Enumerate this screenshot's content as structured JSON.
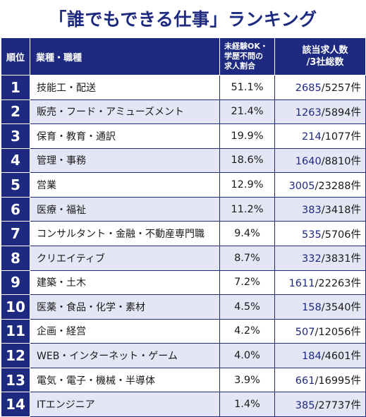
{
  "title": "「誰でもできる仕事」ランキング",
  "header": {
    "rank": "順位",
    "job": "業種・職種",
    "rate": "未経験OK・\n学歴不問の\n求人割合",
    "count": "該当求人数\n/3社総数"
  },
  "rows": [
    {
      "rank": "1",
      "job": "技能工・配送",
      "rate": "51.1%",
      "hits": "2685",
      "total": "/5257件"
    },
    {
      "rank": "2",
      "job": "販売・フード・アミューズメント",
      "rate": "21.4%",
      "hits": "1263",
      "total": "/5894件"
    },
    {
      "rank": "3",
      "job": "保育・教育・通訳",
      "rate": "19.9%",
      "hits": "214",
      "total": "/1077件"
    },
    {
      "rank": "4",
      "job": "管理・事務",
      "rate": "18.6%",
      "hits": "1640",
      "total": "/8810件"
    },
    {
      "rank": "5",
      "job": "営業",
      "rate": "12.9%",
      "hits": "3005",
      "total": "/23288件"
    },
    {
      "rank": "6",
      "job": "医療・福祉",
      "rate": "11.2%",
      "hits": "383",
      "total": "/3418件"
    },
    {
      "rank": "7",
      "job": "コンサルタント・金融・不動産専門職",
      "rate": "9.4%",
      "hits": "535",
      "total": "/5706件"
    },
    {
      "rank": "8",
      "job": "クリエイティブ",
      "rate": "8.7%",
      "hits": "332",
      "total": "/3831件"
    },
    {
      "rank": "9",
      "job": "建築・土木",
      "rate": "7.2%",
      "hits": "1611",
      "total": "/22263件"
    },
    {
      "rank": "10",
      "job": "医薬・食品・化学・素材",
      "rate": "4.5%",
      "hits": "158",
      "total": "/3540件"
    },
    {
      "rank": "11",
      "job": "企画・経営",
      "rate": "4.2%",
      "hits": "507",
      "total": "/12056件"
    },
    {
      "rank": "12",
      "job": "WEB・インターネット・ゲーム",
      "rate": "4.0%",
      "hits": "184",
      "total": "/4601件"
    },
    {
      "rank": "13",
      "job": "電気・電子・機械・半導体",
      "rate": "3.9%",
      "hits": "661",
      "total": "/16995件"
    },
    {
      "rank": "14",
      "job": "ITエンジニア",
      "rate": "1.4%",
      "hits": "385",
      "total": "/27737件"
    }
  ],
  "colors": {
    "navy": "#1d2a80",
    "stripe": "#e4e6f5"
  }
}
